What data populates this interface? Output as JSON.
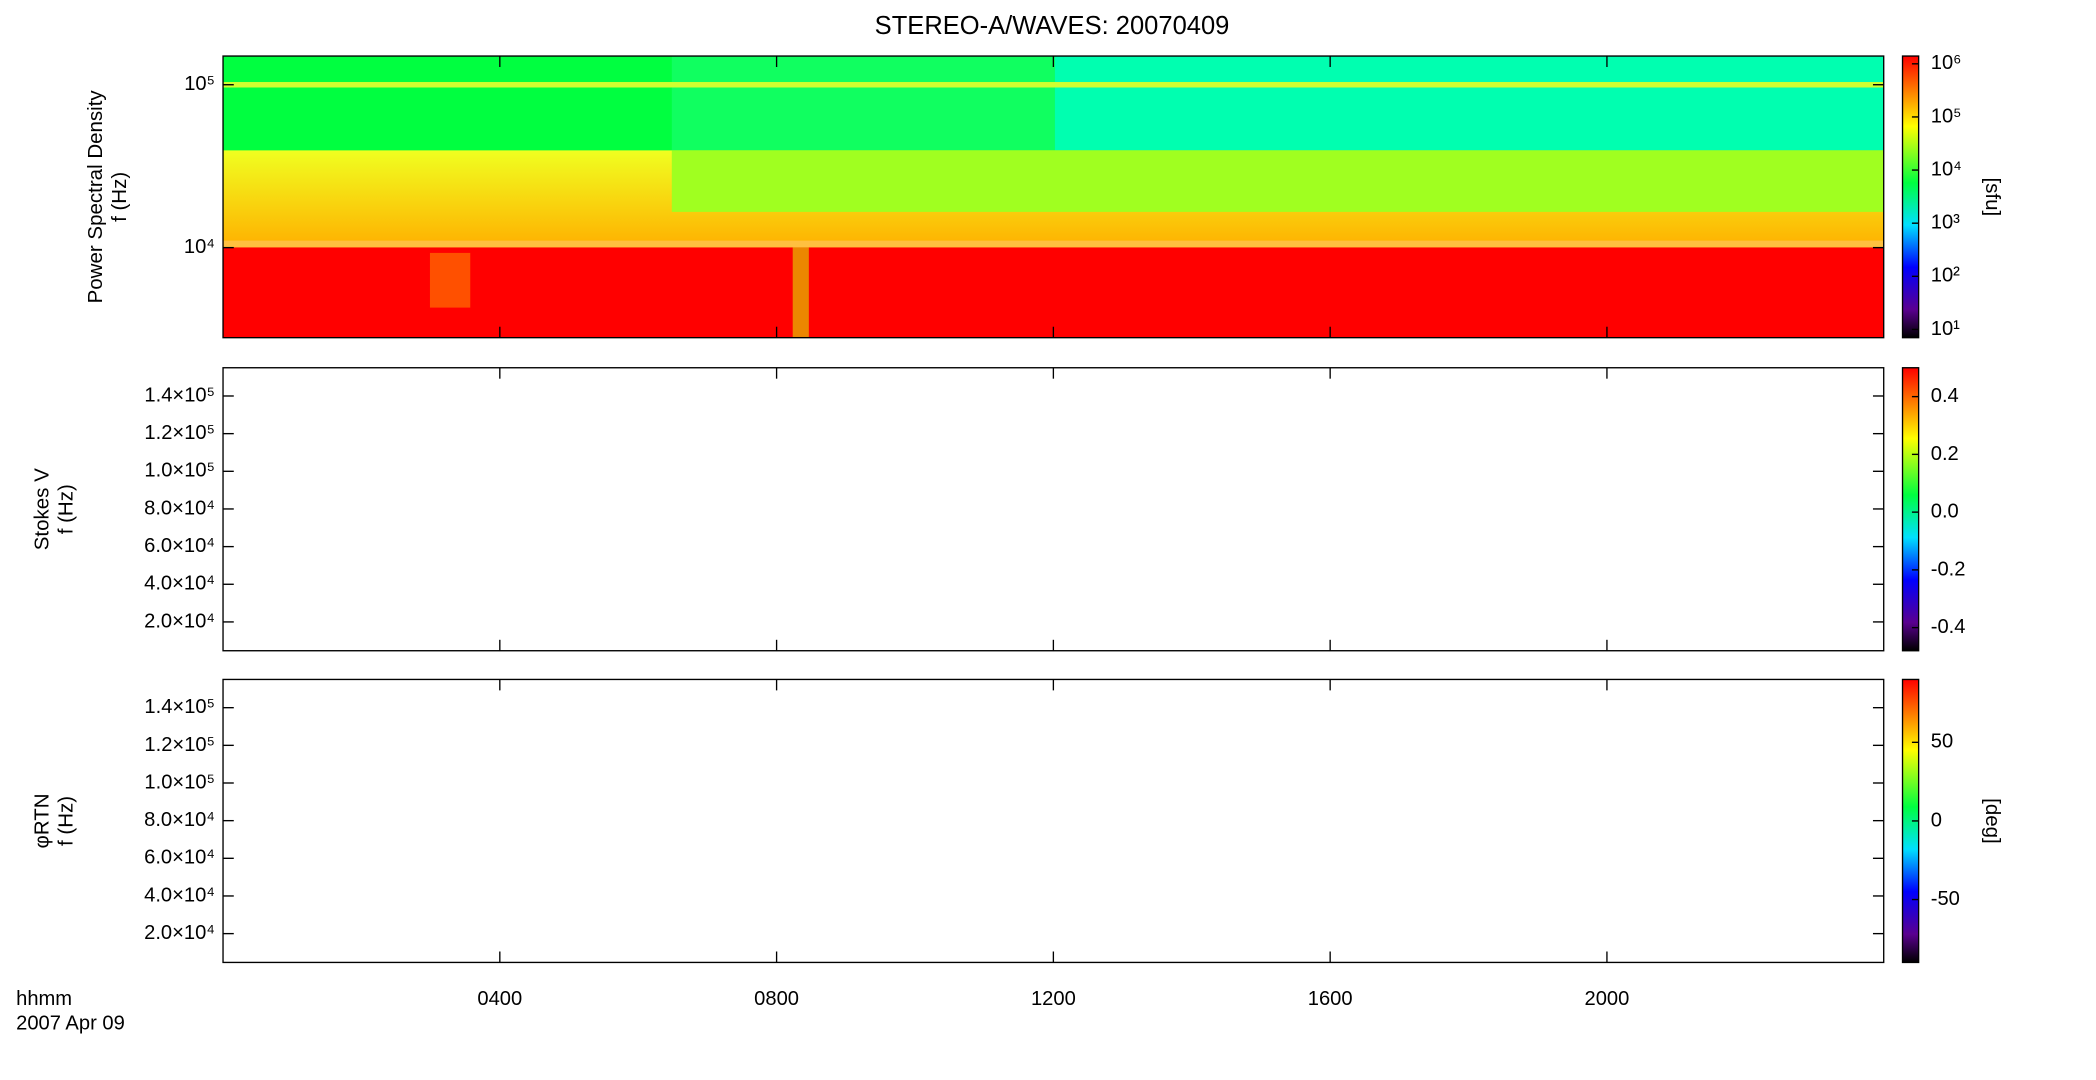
{
  "chart_data": [
    {
      "type": "heatmap",
      "title": "STEREO-A/WAVES: 20070409",
      "ylabel": [
        "Power Spectral Density",
        "f (Hz)"
      ],
      "log_y": true,
      "ylim": [
        2800,
        150000
      ],
      "yticks": [
        {
          "value": 10000,
          "label": "10⁴"
        },
        {
          "value": 100000,
          "label": "10⁵"
        }
      ],
      "xlim": [
        0,
        24
      ],
      "colorbar": {
        "label": "[sfu]",
        "log": true,
        "lim": [
          7,
          1400000
        ],
        "ticks": [
          {
            "value": 10,
            "label": "10¹"
          },
          {
            "value": 100,
            "label": "10²"
          },
          {
            "value": 1000,
            "label": "10³"
          },
          {
            "value": 10000,
            "label": "10⁴"
          },
          {
            "value": 100000,
            "label": "10⁵"
          },
          {
            "value": 1000000,
            "label": "10⁶"
          }
        ]
      }
    },
    {
      "type": "heatmap",
      "ylabel": [
        "Stokes V",
        "f (Hz)"
      ],
      "log_y": false,
      "ylim": [
        4700,
        155000
      ],
      "yticks": [
        {
          "value": 20000,
          "label": "2.0×10⁴"
        },
        {
          "value": 40000,
          "label": "4.0×10⁴"
        },
        {
          "value": 60000,
          "label": "6.0×10⁴"
        },
        {
          "value": 80000,
          "label": "8.0×10⁴"
        },
        {
          "value": 100000,
          "label": "1.0×10⁵"
        },
        {
          "value": 120000,
          "label": "1.2×10⁵"
        },
        {
          "value": 140000,
          "label": "1.4×10⁵"
        }
      ],
      "xlim": [
        0,
        24
      ],
      "colorbar": {
        "log": false,
        "lim": [
          -0.48,
          0.5
        ],
        "ticks": [
          -0.4,
          -0.2,
          {
            "value": 0,
            "label": "0.0"
          },
          0.2,
          0.4
        ]
      }
    },
    {
      "type": "heatmap",
      "ylabel": [
        "φRTN",
        "f (Hz)"
      ],
      "log_y": false,
      "ylim": [
        4700,
        155000
      ],
      "yticks": [
        {
          "value": 20000,
          "label": "2.0×10⁴"
        },
        {
          "value": 40000,
          "label": "4.0×10⁴"
        },
        {
          "value": 60000,
          "label": "6.0×10⁴"
        },
        {
          "value": 80000,
          "label": "8.0×10⁴"
        },
        {
          "value": 100000,
          "label": "1.0×10⁵"
        },
        {
          "value": 120000,
          "label": "1.2×10⁵"
        },
        {
          "value": 140000,
          "label": "1.4×10⁵"
        }
      ],
      "xlim": [
        0,
        24
      ],
      "xlabel": [
        "hhmm",
        "2007 Apr 09"
      ],
      "xticks": [
        {
          "value": 4,
          "label": "0400"
        },
        {
          "value": 8,
          "label": "0800"
        },
        {
          "value": 12,
          "label": "1200"
        },
        {
          "value": 16,
          "label": "1600"
        },
        {
          "value": 20,
          "label": "2000"
        }
      ],
      "colorbar": {
        "label": "[deg]",
        "log": false,
        "lim": [
          -90,
          90
        ],
        "ticks": [
          -50,
          0,
          50
        ]
      }
    }
  ]
}
